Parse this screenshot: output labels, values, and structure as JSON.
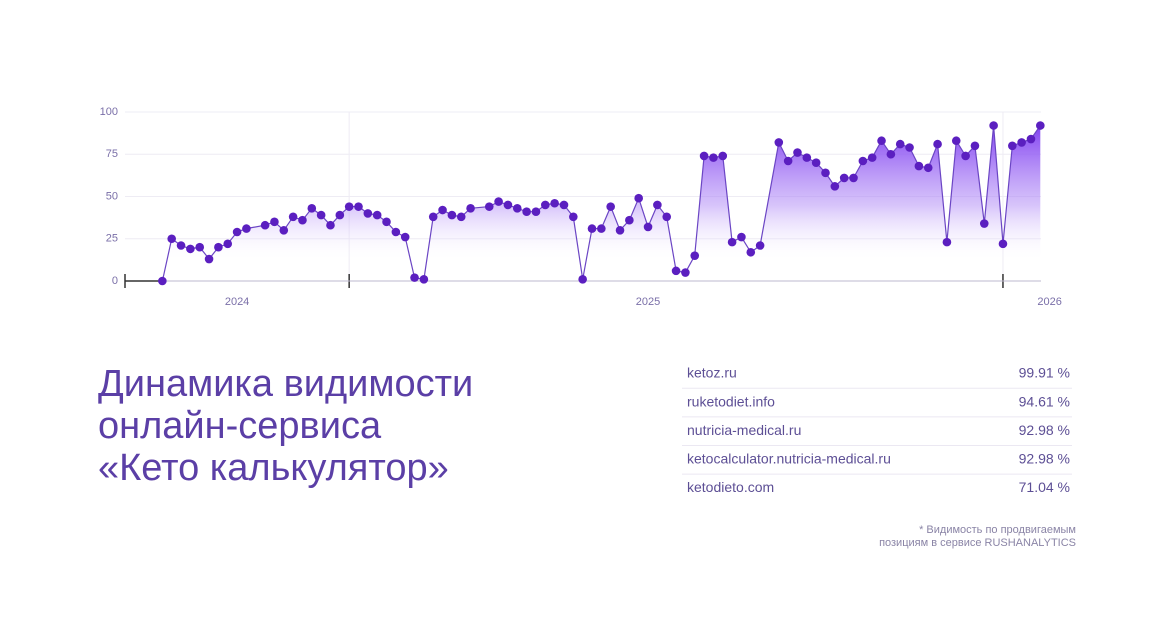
{
  "chart_data": {
    "type": "line",
    "x": [
      0,
      1,
      2,
      3,
      4,
      5,
      6,
      7,
      8,
      9,
      11,
      12,
      13,
      14,
      15,
      16,
      17,
      18,
      19,
      20,
      21,
      22,
      23,
      24,
      25,
      26,
      27,
      28,
      29,
      30,
      31,
      32,
      33,
      35,
      36,
      37,
      38,
      39,
      40,
      41,
      42,
      43,
      44,
      45,
      46,
      47,
      48,
      49,
      50,
      51,
      52,
      53,
      54,
      55,
      56,
      57,
      58,
      59,
      60,
      61,
      62,
      63,
      64,
      66,
      67,
      68,
      69,
      70,
      71,
      72,
      73,
      74,
      75,
      76,
      77,
      78,
      79,
      80,
      81,
      82,
      83,
      84,
      85,
      86,
      87,
      88,
      89,
      90,
      91,
      92,
      93,
      94
    ],
    "values": [
      0,
      25,
      21,
      19,
      20,
      13,
      20,
      22,
      29,
      31,
      33,
      35,
      30,
      38,
      36,
      43,
      39,
      33,
      39,
      44,
      44,
      40,
      39,
      35,
      29,
      26,
      2,
      1,
      38,
      42,
      39,
      38,
      43,
      44,
      47,
      45,
      43,
      41,
      41,
      45,
      46,
      45,
      38,
      1,
      31,
      31,
      44,
      30,
      36,
      49,
      32,
      45,
      38,
      6,
      5,
      15,
      74,
      73,
      74,
      23,
      26,
      17,
      21,
      82,
      71,
      76,
      73,
      70,
      64,
      56,
      61,
      61,
      71,
      73,
      83,
      75,
      81,
      79,
      68,
      67,
      81,
      23,
      83,
      74,
      80,
      34,
      92,
      22,
      80,
      82,
      84,
      92
    ],
    "color": "#5b1fc0",
    "xlim": [
      -4,
      96
    ],
    "xticks": [
      {
        "value": 8,
        "label": "2024"
      },
      {
        "value": 52,
        "label": "2025"
      },
      {
        "value": 95,
        "label": "2026"
      }
    ],
    "xtick_marks": [
      -4,
      20,
      90
    ],
    "ylim": [
      0,
      100
    ],
    "yticks": [
      0,
      25,
      50,
      75,
      100
    ],
    "grid": true
  },
  "heading": {
    "lines": [
      "Динамика видимости",
      "онлайн-сервиса",
      "«Кето калькулятор»"
    ]
  },
  "table": {
    "rows": [
      [
        "ketoz.ru",
        "99.91 %"
      ],
      [
        "ruketodiet.info",
        "94.61 %"
      ],
      [
        "nutricia-medical.ru",
        "92.98 %"
      ],
      [
        "ketocalculator.nutricia-medical.ru",
        "92.98 %"
      ],
      [
        "ketodieto.com",
        "71.04 %"
      ]
    ]
  },
  "footnote": {
    "lines": [
      "* Видимость по продвигаемым",
      "позициям в сервисе RUSHANALYTICS"
    ]
  }
}
